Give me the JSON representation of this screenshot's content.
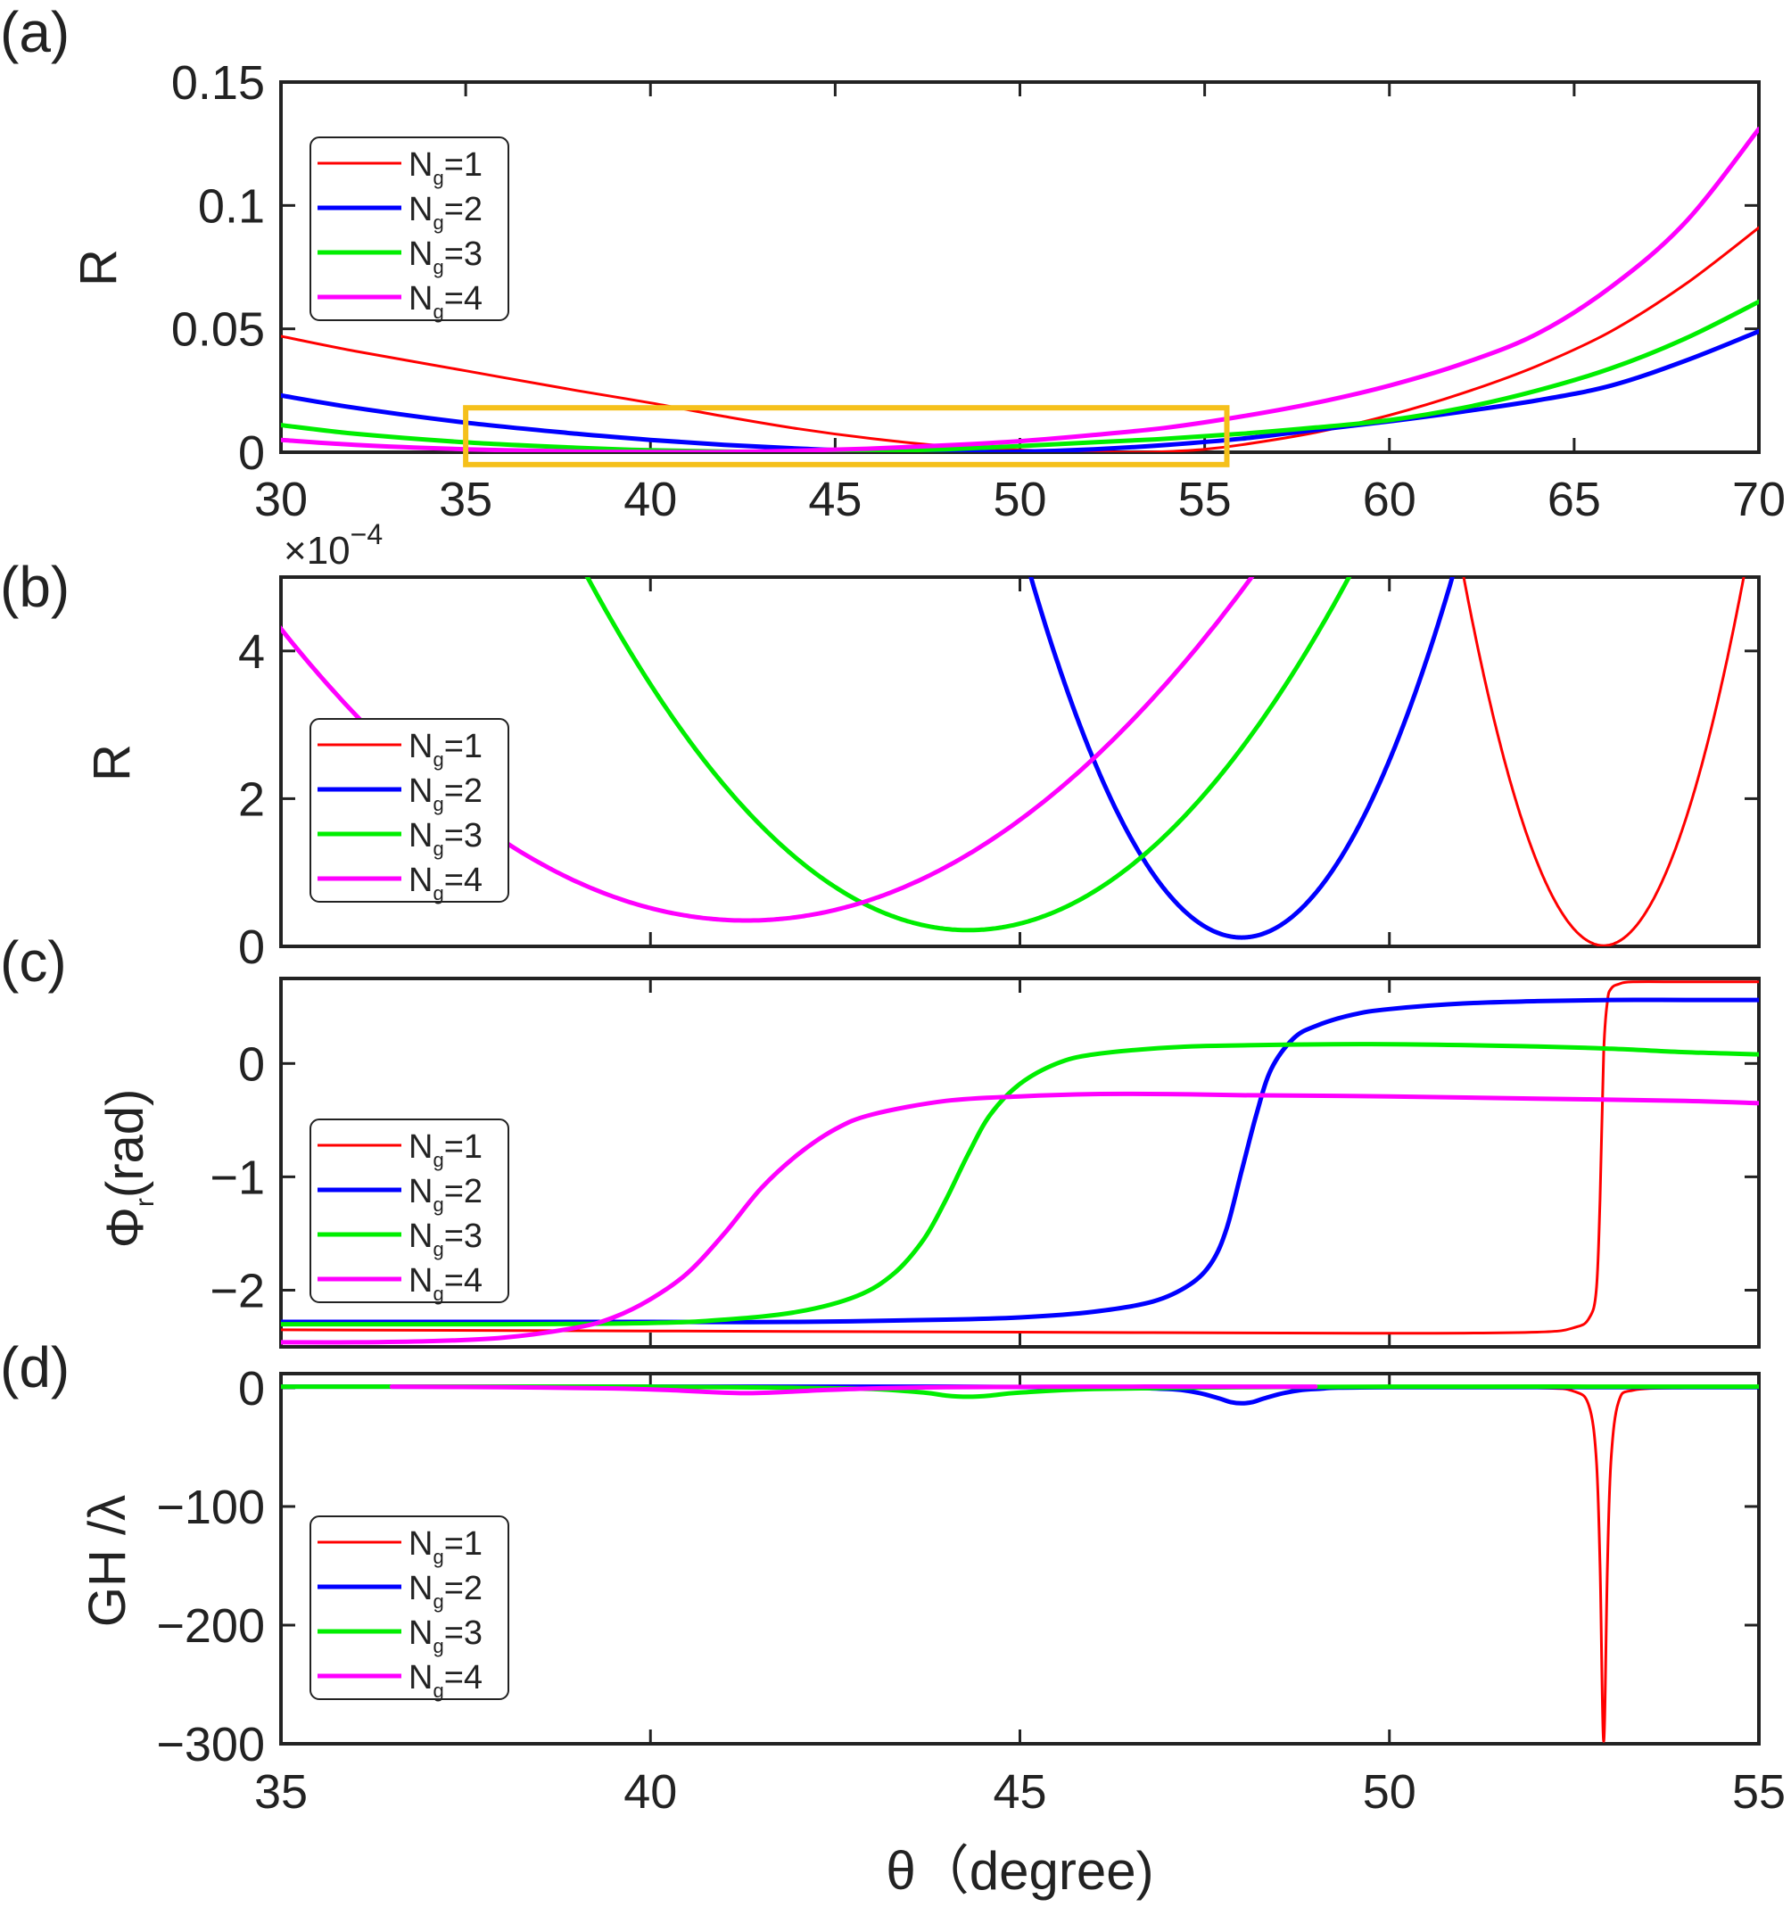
{
  "chart_data": [
    {
      "panel_label": "(a)",
      "type": "line",
      "xlabel": "",
      "ylabel": "R",
      "xlim": [
        30,
        70
      ],
      "ylim": [
        0,
        0.15
      ],
      "xticks": [
        30,
        35,
        40,
        45,
        50,
        55,
        60,
        65,
        70
      ],
      "xtick_labels": [
        "30",
        "35",
        "40",
        "45",
        "50",
        "55",
        "60",
        "65",
        "70"
      ],
      "yticks": [
        0,
        0.05,
        0.1,
        0.15
      ],
      "ytick_labels": [
        "0",
        "0.05",
        "0.1",
        "0.15"
      ],
      "legend": {
        "position": "top-left",
        "entries": [
          "N",
          "N",
          "N",
          "N"
        ],
        "subscripts": [
          "g",
          "g",
          "g",
          "g"
        ],
        "values": [
          "=1",
          "=2",
          "=3",
          "=4"
        ]
      },
      "annotation": {
        "type": "rectangle",
        "label": "zoom region",
        "color": "#f5c01b",
        "x_range": [
          35,
          55.6
        ],
        "y_range": [
          -0.005,
          0.018
        ]
      },
      "series": [
        {
          "name": "Ng=1",
          "color": "#ff0000",
          "line_width": 3,
          "x": [
            30,
            32,
            35,
            38,
            40,
            42,
            44,
            46,
            48,
            50,
            52,
            53,
            54,
            55,
            56,
            58,
            60,
            62,
            64,
            66,
            68,
            70
          ],
          "y": [
            0.047,
            0.041,
            0.033,
            0.025,
            0.02,
            0.0145,
            0.0095,
            0.0055,
            0.0025,
            0.0009,
            0.0002,
            0.0,
            0.0003,
            0.0012,
            0.003,
            0.008,
            0.015,
            0.024,
            0.035,
            0.049,
            0.068,
            0.091
          ]
        },
        {
          "name": "Ng=2",
          "color": "#0000ff",
          "line_width": 5,
          "x": [
            30,
            32,
            35,
            38,
            40,
            42,
            44,
            46,
            48,
            50,
            52,
            54,
            56,
            58,
            60,
            62,
            64,
            66,
            68,
            70
          ],
          "y": [
            0.023,
            0.018,
            0.012,
            0.0075,
            0.005,
            0.003,
            0.0015,
            0.0004,
            0.0001,
            0.0002,
            0.0012,
            0.003,
            0.0055,
            0.009,
            0.0125,
            0.0165,
            0.021,
            0.027,
            0.037,
            0.049
          ]
        },
        {
          "name": "Ng=3",
          "color": "#00ee00",
          "line_width": 5,
          "x": [
            30,
            32,
            35,
            38,
            40,
            42,
            44,
            46,
            48,
            50,
            52,
            54,
            56,
            58,
            60,
            62,
            64,
            66,
            68,
            70
          ],
          "y": [
            0.011,
            0.0075,
            0.004,
            0.0018,
            0.0008,
            0.0003,
            0.0001,
            0.0004,
            0.0012,
            0.0025,
            0.004,
            0.0055,
            0.0075,
            0.01,
            0.013,
            0.018,
            0.025,
            0.034,
            0.046,
            0.061
          ]
        },
        {
          "name": "Ng=4",
          "color": "#ff00ff",
          "line_width": 5,
          "x": [
            30,
            32,
            35,
            38,
            40,
            41.3,
            42,
            44,
            46,
            48,
            50,
            52,
            54,
            56,
            58,
            60,
            62,
            64,
            66,
            68,
            70
          ],
          "y": [
            0.005,
            0.003,
            0.0012,
            0.0003,
            0.0001,
            3e-05,
            0.0001,
            0.0006,
            0.0015,
            0.0028,
            0.0045,
            0.007,
            0.01,
            0.0145,
            0.02,
            0.027,
            0.036,
            0.048,
            0.067,
            0.093,
            0.131
          ]
        }
      ]
    },
    {
      "panel_label": "(b)",
      "type": "line",
      "xlabel": "",
      "ylabel": "R",
      "exponent_label": "×10",
      "exponent_power": "−4",
      "xlim": [
        35,
        55
      ],
      "ylim": [
        0,
        5
      ],
      "xticks": [
        35,
        40,
        45,
        50,
        55
      ],
      "xtick_labels": [],
      "yticks": [
        0,
        2,
        4
      ],
      "ytick_labels": [
        "0",
        "2",
        "4"
      ],
      "legend": {
        "position": "bottom-left",
        "entries": [
          "N",
          "N",
          "N",
          "N"
        ],
        "subscripts": [
          "g",
          "g",
          "g",
          "g"
        ],
        "values": [
          "=1",
          "=2",
          "=3",
          "=4"
        ]
      },
      "series": [
        {
          "name": "Ng=1",
          "color": "#ff0000",
          "line_width": 3,
          "kind": "parabola",
          "x0": 52.9,
          "y_min": 0.01,
          "coef": 1.39
        },
        {
          "name": "Ng=2",
          "color": "#0000ff",
          "line_width": 5,
          "kind": "parabola",
          "x0": 48.0,
          "y_min": 0.12,
          "coef": 0.6
        },
        {
          "name": "Ng=3",
          "color": "#00ee00",
          "line_width": 5,
          "kind": "parabola",
          "x0": 44.3,
          "y_min": 0.22,
          "coef": 0.18
        },
        {
          "name": "Ng=4",
          "color": "#ff00ff",
          "line_width": 5,
          "kind": "parabola",
          "x0": 41.3,
          "y_min": 0.35,
          "coef": 0.0995
        }
      ]
    },
    {
      "panel_label": "(c)",
      "type": "line",
      "xlabel": "",
      "ylabel": "Φ",
      "ylabel_subscript": "r",
      "ylabel_suffix": "(rad)",
      "xlim": [
        35,
        55
      ],
      "ylim": [
        -2.5,
        0.75
      ],
      "xticks": [
        35,
        40,
        45,
        50,
        55
      ],
      "xtick_labels": [],
      "yticks": [
        -2,
        -1,
        0
      ],
      "ytick_labels": [
        "−2",
        "−1",
        "0"
      ],
      "legend": {
        "position": "bottom-left",
        "entries": [
          "N",
          "N",
          "N",
          "N"
        ],
        "subscripts": [
          "g",
          "g",
          "g",
          "g"
        ],
        "values": [
          "=1",
          "=2",
          "=3",
          "=4"
        ]
      },
      "series": [
        {
          "name": "Ng=1",
          "color": "#ff0000",
          "line_width": 3,
          "x": [
            35,
            40,
            45,
            50,
            52,
            52.5,
            52.7,
            52.8,
            52.85,
            52.9,
            52.95,
            53.0,
            53.1,
            53.3,
            54,
            55
          ],
          "y": [
            -2.35,
            -2.36,
            -2.37,
            -2.38,
            -2.37,
            -2.33,
            -2.25,
            -2.0,
            -1.2,
            0.1,
            0.55,
            0.66,
            0.7,
            0.72,
            0.72,
            0.72
          ]
        },
        {
          "name": "Ng=2",
          "color": "#0000ff",
          "line_width": 5,
          "x": [
            35,
            38,
            40,
            42,
            44,
            45,
            46,
            46.8,
            47.3,
            47.6,
            47.8,
            48.0,
            48.2,
            48.4,
            48.7,
            49.0,
            49.5,
            50,
            51,
            52,
            53,
            54,
            55
          ],
          "y": [
            -2.28,
            -2.28,
            -2.28,
            -2.28,
            -2.26,
            -2.24,
            -2.19,
            -2.1,
            -1.95,
            -1.75,
            -1.45,
            -0.95,
            -0.45,
            -0.05,
            0.22,
            0.33,
            0.43,
            0.48,
            0.53,
            0.55,
            0.56,
            0.56,
            0.56
          ]
        },
        {
          "name": "Ng=3",
          "color": "#00ee00",
          "line_width": 5,
          "x": [
            35,
            38,
            40,
            41,
            42,
            42.8,
            43.3,
            43.7,
            44.0,
            44.3,
            44.6,
            45.0,
            45.5,
            46,
            47,
            48,
            50,
            52,
            53,
            54,
            55
          ],
          "y": [
            -2.3,
            -2.3,
            -2.29,
            -2.26,
            -2.19,
            -2.05,
            -1.85,
            -1.55,
            -1.2,
            -0.8,
            -0.45,
            -0.18,
            0.0,
            0.08,
            0.14,
            0.16,
            0.17,
            0.15,
            0.13,
            0.1,
            0.08
          ]
        },
        {
          "name": "Ng=4",
          "color": "#ff00ff",
          "line_width": 5,
          "x": [
            35,
            36,
            37,
            38,
            39,
            39.5,
            40,
            40.5,
            41,
            41.5,
            42,
            42.5,
            43,
            44,
            45,
            46,
            47,
            48,
            50,
            52,
            54,
            55
          ],
          "y": [
            -2.46,
            -2.46,
            -2.45,
            -2.42,
            -2.33,
            -2.24,
            -2.08,
            -1.85,
            -1.5,
            -1.1,
            -0.8,
            -0.58,
            -0.45,
            -0.33,
            -0.29,
            -0.27,
            -0.27,
            -0.28,
            -0.29,
            -0.31,
            -0.33,
            -0.35
          ]
        }
      ]
    },
    {
      "panel_label": "(d)",
      "type": "line",
      "xlabel": "θ（degree)",
      "ylabel": "GH /λ",
      "xlim": [
        35,
        55
      ],
      "ylim": [
        -300,
        12
      ],
      "xticks": [
        35,
        40,
        45,
        50,
        55
      ],
      "xtick_labels": [
        "35",
        "40",
        "45",
        "50",
        "55"
      ],
      "yticks": [
        -300,
        -200,
        -100,
        0
      ],
      "ytick_labels": [
        "−300",
        "−200",
        "−100",
        "0"
      ],
      "legend": {
        "position": "bottom-left",
        "entries": [
          "N",
          "N",
          "N",
          "N"
        ],
        "subscripts": [
          "g",
          "g",
          "g",
          "g"
        ],
        "values": [
          "=1",
          "=2",
          "=3",
          "=4"
        ]
      },
      "series": [
        {
          "name": "Ng=1",
          "color": "#ff0000",
          "line_width": 3,
          "x": [
            35,
            45,
            50,
            52,
            52.5,
            52.7,
            52.8,
            52.85,
            52.9,
            52.95,
            53.0,
            53.1,
            53.3,
            54,
            55
          ],
          "y": [
            1,
            1,
            1,
            0,
            -3,
            -15,
            -60,
            -150,
            -298,
            -150,
            -60,
            -12,
            -2,
            0,
            0
          ]
        },
        {
          "name": "Ng=2",
          "color": "#0000ff",
          "line_width": 5,
          "x": [
            35,
            40,
            44,
            46,
            47,
            47.4,
            47.7,
            47.85,
            48.0,
            48.15,
            48.3,
            48.6,
            49,
            50,
            55
          ],
          "y": [
            1,
            1,
            1,
            0.5,
            -1,
            -4,
            -9,
            -12,
            -13,
            -12,
            -9,
            -4,
            -1,
            0.5,
            0.5
          ]
        },
        {
          "name": "Ng=3",
          "color": "#00ee00",
          "line_width": 5,
          "x": [
            35,
            40,
            42,
            43,
            43.7,
            44.0,
            44.3,
            44.6,
            45.0,
            46,
            48,
            50,
            55
          ],
          "y": [
            1,
            1,
            0,
            -1,
            -4,
            -6.5,
            -7.5,
            -6.5,
            -4,
            -1,
            0.5,
            1,
            1
          ]
        },
        {
          "name": "Ng=4",
          "color": "#ff00ff",
          "line_width": 5,
          "x": [
            36.5,
            38,
            39.5,
            40.3,
            40.8,
            41.3,
            41.8,
            42.3,
            43,
            44,
            46,
            48,
            49
          ],
          "y": [
            1,
            0.5,
            -0.5,
            -2,
            -3.5,
            -4.5,
            -3.5,
            -2,
            -0.5,
            0.5,
            1,
            1,
            1
          ]
        }
      ]
    }
  ]
}
